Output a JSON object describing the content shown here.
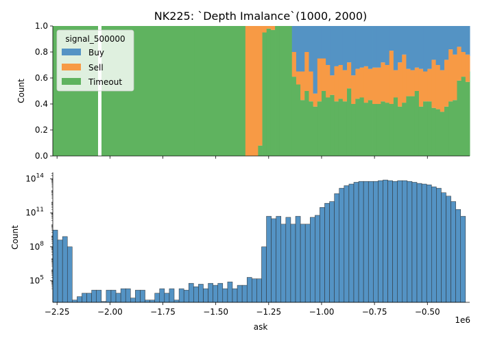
{
  "chart_data": [
    {
      "type": "bar",
      "stacked": "fill",
      "title": "NK225: `Depth Imalance`(1000, 2000)",
      "xlabel": "",
      "ylabel": "Count",
      "ylim": [
        0,
        1
      ],
      "yticks": [
        "0.0",
        "0.2",
        "0.4",
        "0.6",
        "0.8",
        "1.0"
      ],
      "legend": {
        "title": "signal_500000",
        "position": "upper-left",
        "entries": [
          "Buy",
          "Sell",
          "Timeout"
        ]
      },
      "colors": {
        "Buy": "#5493c4",
        "Sell": "#f79a45",
        "Timeout": "#5fb35f"
      },
      "x": [
        -2270000.0,
        -1980000.0,
        -1600000.0,
        -1360000.0,
        -1320000.0,
        -1300000.0,
        -1280000.0,
        -1260000.0,
        -1240000.0,
        -1220000.0,
        -1200000.0,
        -1180000.0,
        -1160000.0,
        -1140000.0,
        -1120000.0,
        -1100000.0,
        -1080000.0,
        -1060000.0,
        -1040000.0,
        -1020000.0,
        -1000000.0,
        -980000.0,
        -960000.0,
        -940000.0,
        -920000.0,
        -900000.0,
        -880000.0,
        -860000.0,
        -840000.0,
        -820000.0,
        -800000.0,
        -780000.0,
        -760000.0,
        -740000.0,
        -720000.0,
        -700000.0,
        -680000.0,
        -660000.0,
        -640000.0,
        -620000.0,
        -600000.0,
        -580000.0,
        -560000.0,
        -540000.0,
        -520000.0,
        -500000.0,
        -480000.0,
        -460000.0,
        -440000.0,
        -420000.0,
        -400000.0,
        -380000.0,
        -360000.0,
        -340000.0,
        -320000.0,
        -300000.0
      ],
      "series": [
        {
          "name": "Buy",
          "values": [
            0,
            0,
            0,
            0,
            0,
            0,
            0,
            0,
            0,
            0,
            0,
            0,
            0,
            0.2,
            0.35,
            0.35,
            0.2,
            0.35,
            0.52,
            0.25,
            0.25,
            0.3,
            0.38,
            0.31,
            0.3,
            0.34,
            0.28,
            0.38,
            0.33,
            0.32,
            0.31,
            0.33,
            0.32,
            0.32,
            0.28,
            0.3,
            0.19,
            0.34,
            0.28,
            0.22,
            0.33,
            0.34,
            0.32,
            0.33,
            0.35,
            0.33,
            0.26,
            0.3,
            0.34,
            0.26,
            0.18,
            0.22,
            0.16,
            0.2,
            0.22,
            0.23
          ]
        },
        {
          "name": "Sell",
          "values": [
            0,
            0,
            0,
            1.0,
            1.0,
            0.92,
            0.05,
            0.02,
            0.03,
            0,
            0,
            0,
            0,
            0.19,
            0.1,
            0.22,
            0.3,
            0.23,
            0.1,
            0.33,
            0.25,
            0.25,
            0.15,
            0.27,
            0.26,
            0.24,
            0.2,
            0.22,
            0.23,
            0.23,
            0.28,
            0.24,
            0.28,
            0.28,
            0.3,
            0.29,
            0.41,
            0.21,
            0.34,
            0.37,
            0.21,
            0.2,
            0.18,
            0.29,
            0.23,
            0.25,
            0.37,
            0.34,
            0.32,
            0.36,
            0.4,
            0.35,
            0.26,
            0.19,
            0.21,
            0.12
          ]
        },
        {
          "name": "Timeout",
          "values": [
            1.0,
            1.0,
            1.0,
            0,
            0,
            0.08,
            0.95,
            0.98,
            0.97,
            1.0,
            1.0,
            1.0,
            1.0,
            0.61,
            0.55,
            0.43,
            0.5,
            0.42,
            0.38,
            0.42,
            0.5,
            0.45,
            0.47,
            0.42,
            0.44,
            0.42,
            0.52,
            0.4,
            0.44,
            0.45,
            0.41,
            0.43,
            0.4,
            0.4,
            0.42,
            0.41,
            0.4,
            0.45,
            0.38,
            0.41,
            0.46,
            0.46,
            0.5,
            0.38,
            0.42,
            0.42,
            0.37,
            0.36,
            0.34,
            0.38,
            0.42,
            0.43,
            0.58,
            0.61,
            0.57,
            0.65
          ]
        }
      ]
    },
    {
      "type": "bar",
      "title": "",
      "xlabel": "ask",
      "ylabel": "Count",
      "yscale": "log",
      "ytick_labels": [
        {
          "base": "10",
          "exp": "5",
          "value": 100000
        },
        {
          "base": "10",
          "exp": "8",
          "value": 100000000
        },
        {
          "base": "10",
          "exp": "11",
          "value": 100000000000
        },
        {
          "base": "10",
          "exp": "14",
          "value": 100000000000000
        }
      ],
      "xtick_labels": [
        "−2.25",
        "−2.00",
        "−1.75",
        "−1.50",
        "−1.25",
        "−1.00",
        "−0.75",
        "−0.50"
      ],
      "xtick_values": [
        -2.25,
        -2.0,
        -1.75,
        -1.5,
        -1.25,
        -1.0,
        -0.75,
        -0.5
      ],
      "x_offset_label": "1e6",
      "bin_range": [
        -2270000.0,
        -320000.0
      ],
      "color": "#5493c4",
      "counts": [
        3000000000.0,
        400000000.0,
        800000000.0,
        100000000.0,
        2000,
        4000,
        8000,
        8000,
        15000,
        15000,
        1500,
        15000,
        15000,
        8000,
        20000,
        20000,
        3000,
        15000,
        15000,
        2000,
        2000,
        8000,
        20000,
        8000,
        20000,
        2000,
        20000,
        15000,
        60000,
        30000,
        50000,
        20000,
        60000,
        40000,
        60000,
        20000,
        80000,
        20000,
        40000,
        40000,
        200000.0,
        150000.0,
        150000.0,
        100000000.0,
        50000000000.0,
        30000000000.0,
        50000000000.0,
        10000000000.0,
        40000000000.0,
        10000000000.0,
        50000000000.0,
        10000000000.0,
        10000000000.0,
        40000000000.0,
        60000000000.0,
        300000000000.0,
        700000000000.0,
        1000000000000.0,
        5000000000000.0,
        15000000000000.0,
        25000000000000.0,
        35000000000000.0,
        50000000000000.0,
        60000000000000.0,
        60000000000000.0,
        60000000000000.0,
        60000000000000.0,
        70000000000000.0,
        80000000000000.0,
        70000000000000.0,
        60000000000000.0,
        70000000000000.0,
        70000000000000.0,
        60000000000000.0,
        50000000000000.0,
        40000000000000.0,
        35000000000000.0,
        30000000000000.0,
        20000000000000.0,
        15000000000000.0,
        6000000000000.0,
        3000000000000.0,
        1000000000000.0,
        200000000000.0,
        50000000000.0
      ]
    }
  ]
}
